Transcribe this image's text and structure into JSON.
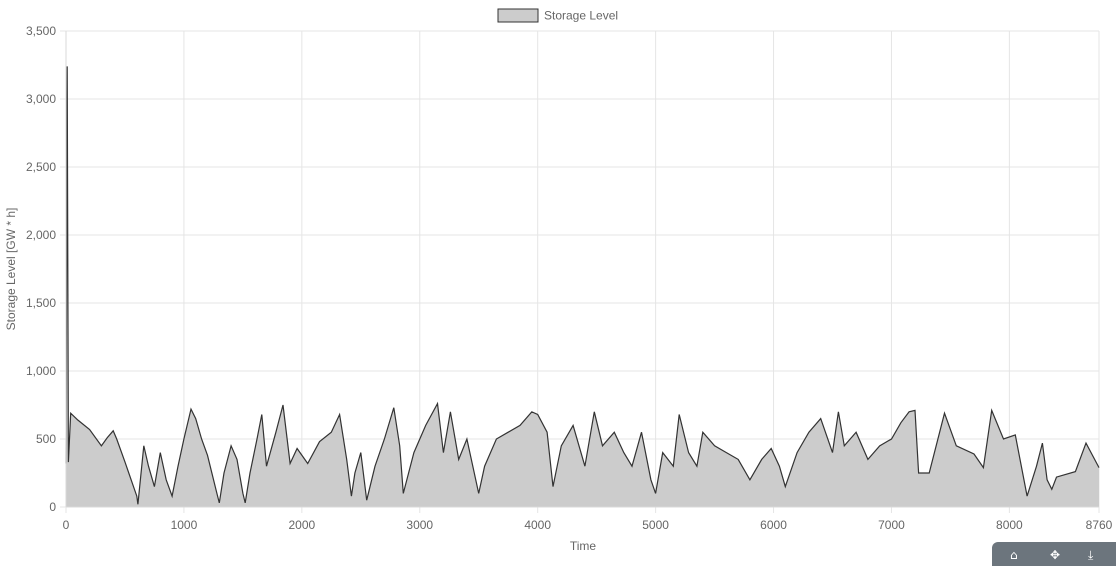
{
  "chart_data": {
    "type": "area",
    "title": "",
    "legend": {
      "label": "Storage Level",
      "position": "top",
      "fill": "#cccccc",
      "stroke": "#333333"
    },
    "xlabel": "Time",
    "ylabel": "Storage Level [GW * h]",
    "xlim": [
      0,
      8760
    ],
    "ylim": [
      0,
      3500
    ],
    "x_ticks": [
      "0",
      "1000",
      "2000",
      "3000",
      "4000",
      "5000",
      "6000",
      "7000",
      "8000",
      "8760"
    ],
    "y_ticks": [
      "0",
      "500",
      "1,000",
      "1,500",
      "2,000",
      "2,500",
      "3,000",
      "3,500"
    ],
    "grid": true,
    "series": [
      {
        "name": "Storage Level",
        "color": "#333333",
        "fill": "#cccccc",
        "points": [
          [
            0,
            320
          ],
          [
            10,
            3240
          ],
          [
            20,
            330
          ],
          [
            40,
            690
          ],
          [
            100,
            640
          ],
          [
            200,
            570
          ],
          [
            300,
            450
          ],
          [
            350,
            510
          ],
          [
            400,
            560
          ],
          [
            430,
            500
          ],
          [
            500,
            330
          ],
          [
            600,
            80
          ],
          [
            610,
            20
          ],
          [
            660,
            450
          ],
          [
            700,
            300
          ],
          [
            750,
            150
          ],
          [
            800,
            400
          ],
          [
            850,
            200
          ],
          [
            900,
            80
          ],
          [
            950,
            300
          ],
          [
            1000,
            500
          ],
          [
            1060,
            720
          ],
          [
            1100,
            650
          ],
          [
            1150,
            500
          ],
          [
            1200,
            380
          ],
          [
            1280,
            100
          ],
          [
            1300,
            30
          ],
          [
            1340,
            250
          ],
          [
            1400,
            450
          ],
          [
            1450,
            350
          ],
          [
            1500,
            100
          ],
          [
            1520,
            30
          ],
          [
            1560,
            250
          ],
          [
            1620,
            500
          ],
          [
            1660,
            680
          ],
          [
            1700,
            300
          ],
          [
            1780,
            550
          ],
          [
            1840,
            750
          ],
          [
            1900,
            320
          ],
          [
            1960,
            430
          ],
          [
            2050,
            320
          ],
          [
            2150,
            480
          ],
          [
            2250,
            550
          ],
          [
            2320,
            680
          ],
          [
            2380,
            350
          ],
          [
            2420,
            80
          ],
          [
            2450,
            250
          ],
          [
            2500,
            400
          ],
          [
            2550,
            50
          ],
          [
            2620,
            300
          ],
          [
            2700,
            500
          ],
          [
            2780,
            730
          ],
          [
            2830,
            450
          ],
          [
            2860,
            100
          ],
          [
            2950,
            400
          ],
          [
            3050,
            600
          ],
          [
            3150,
            760
          ],
          [
            3200,
            400
          ],
          [
            3260,
            700
          ],
          [
            3330,
            350
          ],
          [
            3400,
            500
          ],
          [
            3500,
            100
          ],
          [
            3550,
            300
          ],
          [
            3650,
            500
          ],
          [
            3750,
            550
          ],
          [
            3850,
            600
          ],
          [
            3950,
            700
          ],
          [
            4000,
            680
          ],
          [
            4080,
            550
          ],
          [
            4130,
            150
          ],
          [
            4200,
            450
          ],
          [
            4300,
            600
          ],
          [
            4400,
            300
          ],
          [
            4480,
            700
          ],
          [
            4550,
            450
          ],
          [
            4650,
            550
          ],
          [
            4730,
            400
          ],
          [
            4800,
            300
          ],
          [
            4880,
            550
          ],
          [
            4960,
            200
          ],
          [
            5000,
            100
          ],
          [
            5060,
            400
          ],
          [
            5150,
            300
          ],
          [
            5200,
            680
          ],
          [
            5280,
            400
          ],
          [
            5350,
            300
          ],
          [
            5400,
            550
          ],
          [
            5500,
            450
          ],
          [
            5600,
            400
          ],
          [
            5700,
            350
          ],
          [
            5800,
            200
          ],
          [
            5900,
            350
          ],
          [
            5980,
            430
          ],
          [
            6050,
            300
          ],
          [
            6100,
            150
          ],
          [
            6200,
            400
          ],
          [
            6300,
            550
          ],
          [
            6400,
            650
          ],
          [
            6500,
            400
          ],
          [
            6550,
            700
          ],
          [
            6600,
            450
          ],
          [
            6700,
            550
          ],
          [
            6800,
            350
          ],
          [
            6900,
            450
          ],
          [
            7000,
            500
          ],
          [
            7080,
            620
          ],
          [
            7150,
            700
          ],
          [
            7200,
            710
          ],
          [
            7230,
            250
          ],
          [
            7320,
            250
          ],
          [
            7450,
            690
          ],
          [
            7550,
            450
          ],
          [
            7700,
            390
          ],
          [
            7780,
            290
          ],
          [
            7850,
            710
          ],
          [
            7950,
            500
          ],
          [
            8050,
            530
          ],
          [
            8150,
            80
          ],
          [
            8230,
            300
          ],
          [
            8280,
            470
          ],
          [
            8320,
            200
          ],
          [
            8360,
            130
          ],
          [
            8400,
            220
          ],
          [
            8560,
            260
          ],
          [
            8650,
            470
          ],
          [
            8760,
            290
          ]
        ]
      }
    ]
  },
  "toolbar": {
    "icons": [
      "home-icon",
      "pan-icon",
      "download-icon"
    ]
  }
}
